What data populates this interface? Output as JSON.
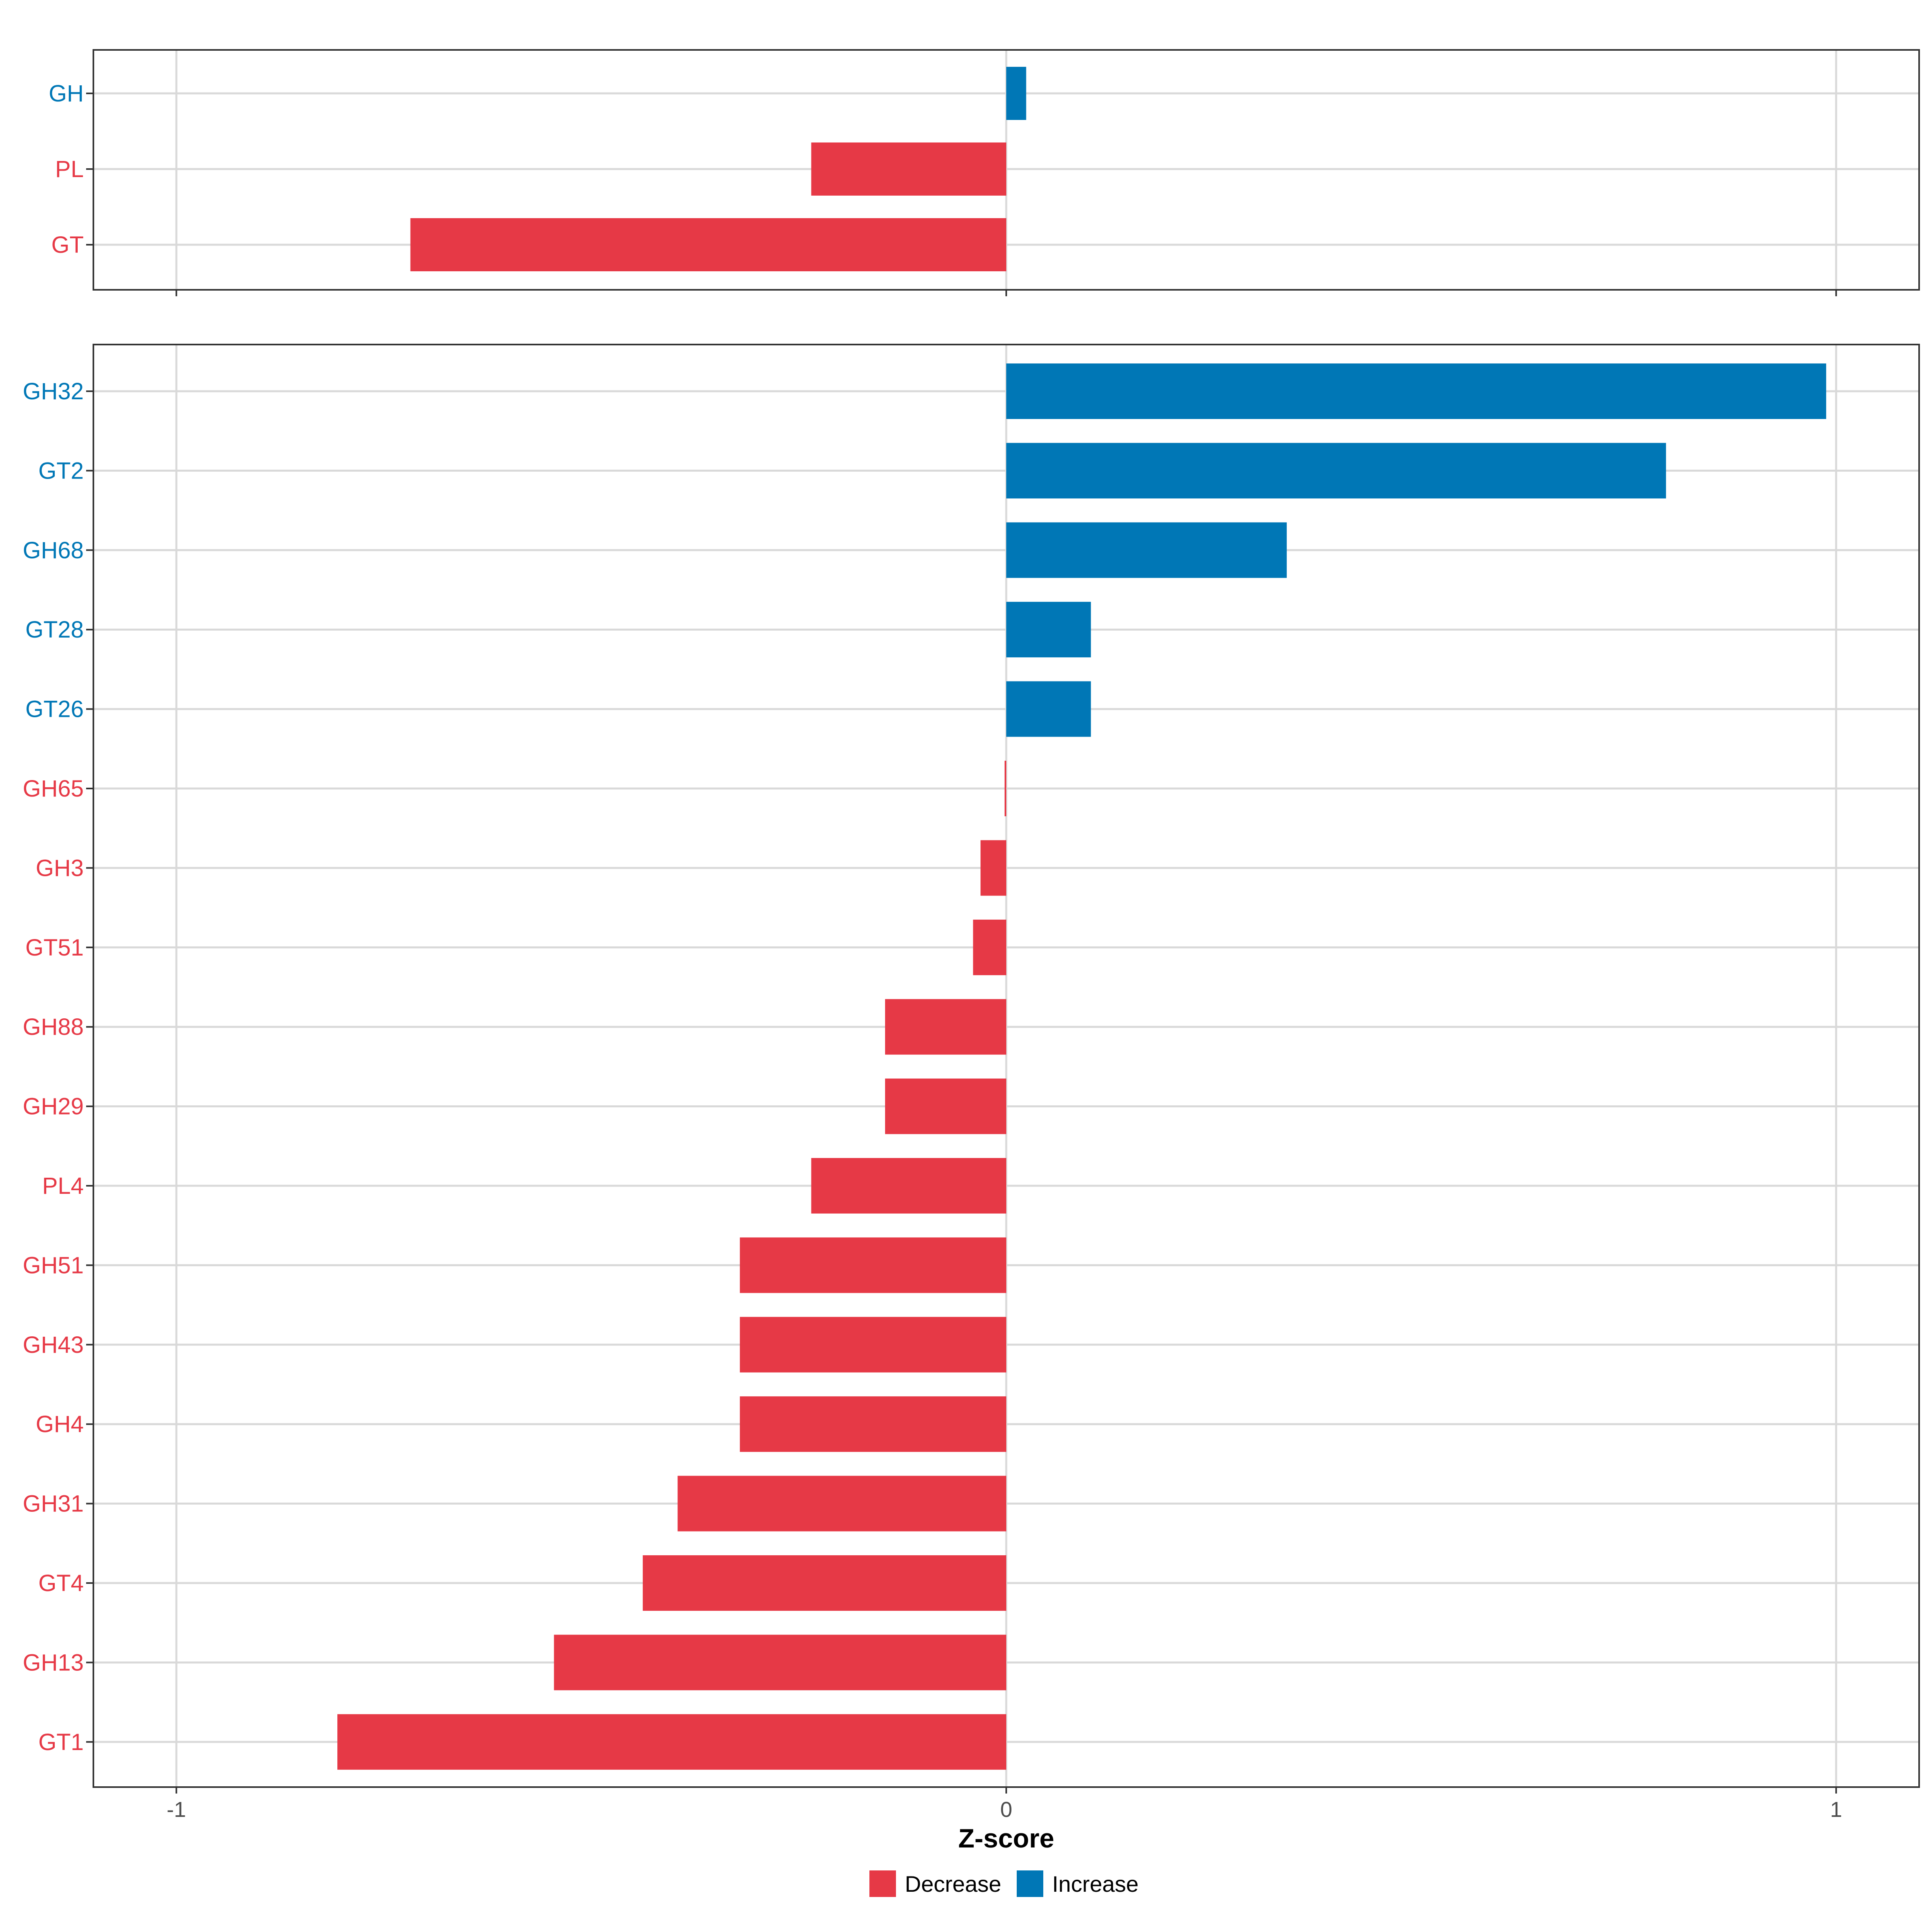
{
  "chart_data": {
    "type": "bar",
    "orientation": "horizontal",
    "xlabel": "Z-score",
    "xlim": [
      -1.1,
      1.1
    ],
    "xticks": [
      {
        "value": -1,
        "label": "-1"
      },
      {
        "value": 0,
        "label": "0"
      },
      {
        "value": 1,
        "label": "1"
      }
    ],
    "grid": true,
    "legend_position": "bottom",
    "colors": {
      "Decrease": "#e63946",
      "Increase": "#0077b6"
    },
    "legend": [
      "Decrease",
      "Increase"
    ],
    "panels": [
      {
        "categories": [
          "GH",
          "PL",
          "GT"
        ],
        "values": [
          0.024,
          -0.235,
          -0.718
        ],
        "groups": [
          "Increase",
          "Decrease",
          "Decrease"
        ]
      },
      {
        "categories": [
          "GH32",
          "GT2",
          "GH68",
          "GT28",
          "GT26",
          "GH65",
          "GH3",
          "GT51",
          "GH88",
          "GH29",
          "PL4",
          "GH51",
          "GH43",
          "GH4",
          "GH31",
          "GT4",
          "GH13",
          "GT1"
        ],
        "values": [
          0.988,
          0.795,
          0.338,
          0.102,
          0.102,
          -0.002,
          -0.031,
          -0.04,
          -0.146,
          -0.146,
          -0.235,
          -0.321,
          -0.321,
          -0.321,
          -0.396,
          -0.438,
          -0.545,
          -0.806
        ],
        "groups": [
          "Increase",
          "Increase",
          "Increase",
          "Increase",
          "Increase",
          "Decrease",
          "Decrease",
          "Decrease",
          "Decrease",
          "Decrease",
          "Decrease",
          "Decrease",
          "Decrease",
          "Decrease",
          "Decrease",
          "Decrease",
          "Decrease",
          "Decrease"
        ]
      }
    ]
  }
}
